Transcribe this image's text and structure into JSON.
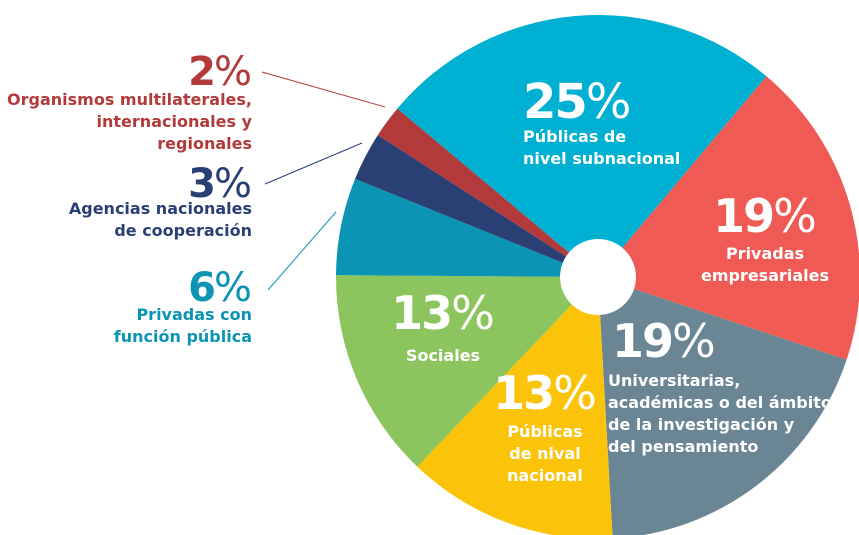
{
  "chart_data": {
    "type": "pie",
    "categories": [
      "Públicas de\nnivel subnacional",
      "Privadas\nempresariales",
      "Universitarias,\nacadémicas o del ámbito\nde la investigación y\ndel pensamiento",
      "Públicas\nde nival\nnacional",
      "Sociales",
      "Privadas con\nfunción pública",
      "Agencias nacionales\nde cooperación",
      "Organismos multilaterales,\ninternacionales y regionales"
    ],
    "values": [
      25,
      19,
      19,
      13,
      13,
      6,
      3,
      2
    ],
    "value_labels": [
      "25%",
      "19%",
      "19%",
      "13%",
      "13%",
      "6%",
      "3%",
      "2%"
    ],
    "colors": [
      "#00b0d2",
      "#ef5a55",
      "#6a8593",
      "#fcc30b",
      "#8cc55d",
      "#0b94b3",
      "#2a3f73",
      "#b23a3a"
    ]
  }
}
